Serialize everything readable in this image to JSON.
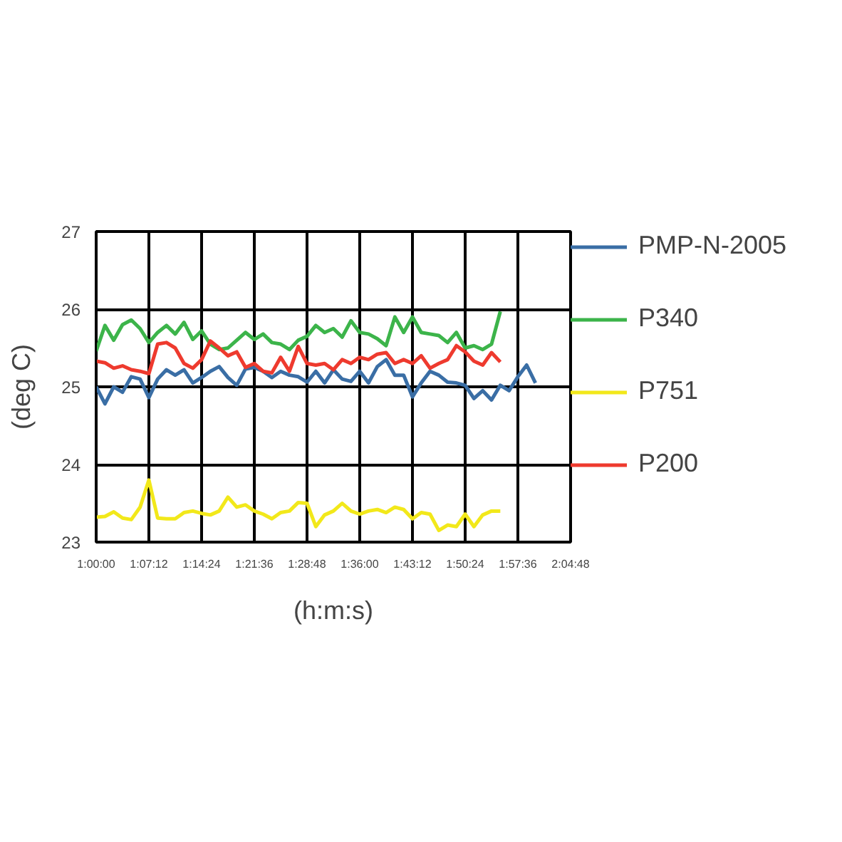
{
  "chart_data": {
    "type": "line",
    "xlabel": "(h:m:s)",
    "ylabel": "(deg C)",
    "x": [
      1.0,
      1.02,
      1.04,
      1.06,
      1.08,
      1.1,
      1.12,
      1.14,
      1.16,
      1.18,
      1.2,
      1.22,
      1.24,
      1.26,
      1.28,
      1.3,
      1.32,
      1.34,
      1.36,
      1.38,
      1.4,
      1.42,
      1.44,
      1.46,
      1.48,
      1.5,
      1.52,
      1.54,
      1.56,
      1.58,
      1.6,
      1.62,
      1.64,
      1.66,
      1.68,
      1.7,
      1.72,
      1.74,
      1.76,
      1.78,
      1.8,
      1.82,
      1.84,
      1.86,
      1.88,
      1.9,
      1.92
    ],
    "xlim": [
      1.0,
      2.08
    ],
    "xticks": [
      {
        "value": 1.0,
        "label": "1:00:00"
      },
      {
        "value": 1.12,
        "label": "1:07:12"
      },
      {
        "value": 1.24,
        "label": "1:14:24"
      },
      {
        "value": 1.36,
        "label": "1:21:36"
      },
      {
        "value": 1.48,
        "label": "1:28:48"
      },
      {
        "value": 1.6,
        "label": "1:36:00"
      },
      {
        "value": 1.72,
        "label": "1:43:12"
      },
      {
        "value": 1.84,
        "label": "1:50:24"
      },
      {
        "value": 1.96,
        "label": "1:57:36"
      },
      {
        "value": 2.08,
        "label": "2:04:48"
      }
    ],
    "ylim": [
      23,
      27
    ],
    "yticks": [
      23,
      24,
      25,
      26,
      27
    ],
    "grid": true,
    "legend": "right",
    "line_style": "solid",
    "series": [
      {
        "name": "PMP-N-2005",
        "color": "#3a6ea5",
        "x": [
          1.0,
          1.02,
          1.04,
          1.06,
          1.08,
          1.1,
          1.12,
          1.14,
          1.16,
          1.18,
          1.2,
          1.22,
          1.24,
          1.26,
          1.28,
          1.3,
          1.32,
          1.34,
          1.36,
          1.38,
          1.4,
          1.42,
          1.44,
          1.46,
          1.48,
          1.5,
          1.52,
          1.54,
          1.56,
          1.58,
          1.6,
          1.62,
          1.64,
          1.66,
          1.68,
          1.7,
          1.72,
          1.74,
          1.76,
          1.78,
          1.8,
          1.82,
          1.84,
          1.86,
          1.88,
          1.9,
          1.92,
          1.94,
          1.96,
          1.98,
          2.0
        ],
        "values": [
          25.0,
          24.78,
          25.0,
          24.93,
          25.13,
          25.1,
          24.86,
          25.1,
          25.22,
          25.15,
          25.22,
          25.05,
          25.12,
          25.2,
          25.26,
          25.12,
          25.02,
          25.23,
          25.25,
          25.2,
          25.12,
          25.2,
          25.15,
          25.13,
          25.06,
          25.2,
          25.05,
          25.22,
          25.1,
          25.07,
          25.2,
          25.05,
          25.26,
          25.35,
          25.15,
          25.15,
          24.87,
          25.05,
          25.2,
          25.15,
          25.06,
          25.05,
          25.02,
          24.85,
          24.95,
          24.83,
          25.02,
          24.95,
          25.13,
          25.28,
          25.05
        ]
      },
      {
        "name": "P340",
        "color": "#3cb44a",
        "values": [
          25.46,
          25.79,
          25.6,
          25.8,
          25.86,
          25.75,
          25.57,
          25.7,
          25.79,
          25.68,
          25.83,
          25.61,
          25.72,
          25.55,
          25.48,
          25.5,
          25.6,
          25.7,
          25.61,
          25.68,
          25.57,
          25.55,
          25.48,
          25.6,
          25.65,
          25.79,
          25.7,
          25.75,
          25.64,
          25.85,
          25.7,
          25.68,
          25.62,
          25.53,
          25.9,
          25.7,
          25.9,
          25.7,
          25.68,
          25.66,
          25.57,
          25.7,
          25.5,
          25.53,
          25.48,
          25.55,
          25.97
        ]
      },
      {
        "name": "P751",
        "color": "#f2e81a",
        "values": [
          23.32,
          23.33,
          23.39,
          23.31,
          23.29,
          23.45,
          23.8,
          23.31,
          23.3,
          23.3,
          23.38,
          23.4,
          23.37,
          23.35,
          23.4,
          23.58,
          23.45,
          23.48,
          23.4,
          23.36,
          23.3,
          23.38,
          23.4,
          23.51,
          23.5,
          23.2,
          23.35,
          23.4,
          23.5,
          23.4,
          23.36,
          23.4,
          23.42,
          23.38,
          23.45,
          23.42,
          23.3,
          23.38,
          23.36,
          23.15,
          23.22,
          23.2,
          23.36,
          23.2,
          23.35,
          23.4,
          23.4
        ]
      },
      {
        "name": "P200",
        "color": "#ee3a2e",
        "values": [
          25.33,
          25.31,
          25.24,
          25.27,
          25.22,
          25.2,
          25.17,
          25.55,
          25.57,
          25.5,
          25.3,
          25.24,
          25.35,
          25.59,
          25.5,
          25.4,
          25.45,
          25.25,
          25.3,
          25.2,
          25.18,
          25.38,
          25.2,
          25.52,
          25.3,
          25.28,
          25.3,
          25.22,
          25.35,
          25.3,
          25.38,
          25.35,
          25.42,
          25.44,
          25.3,
          25.35,
          25.3,
          25.4,
          25.24,
          25.3,
          25.35,
          25.53,
          25.45,
          25.33,
          25.28,
          25.44,
          25.32
        ]
      }
    ]
  }
}
